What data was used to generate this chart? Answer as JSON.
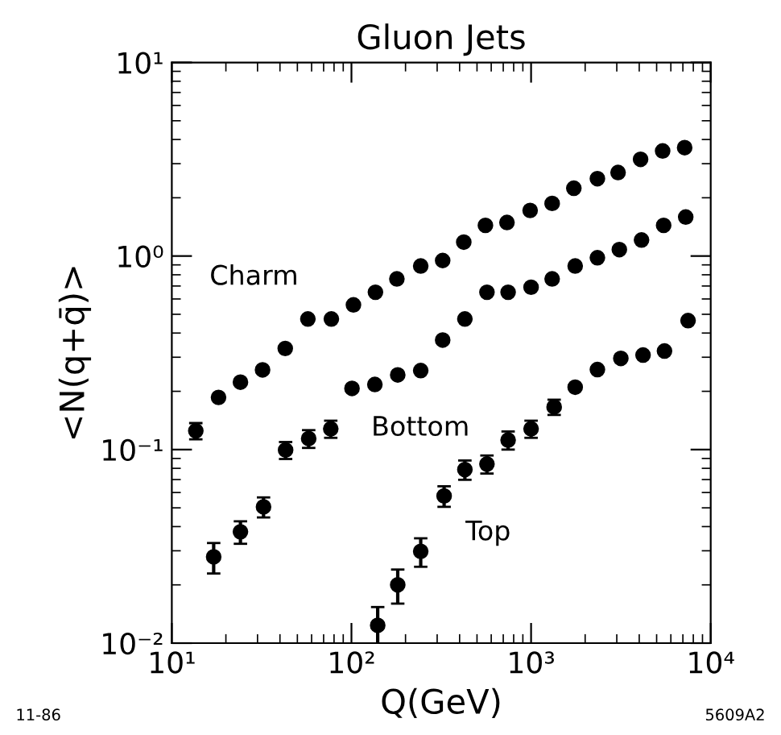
{
  "chart_data": {
    "type": "scatter",
    "title": "Gluon Jets",
    "xlabel": "Q(GeV)",
    "ylabel": "<N(q+q̄)>",
    "log": "xy",
    "marker": "circle",
    "grid": false,
    "legend": false,
    "xlim": [
      10,
      10000
    ],
    "ylim": [
      0.01,
      10
    ],
    "xticks": [
      {
        "value": 10,
        "label": "10¹"
      },
      {
        "value": 100,
        "label": "10²"
      },
      {
        "value": 1000,
        "label": "10³"
      },
      {
        "value": 10000,
        "label": "10⁴"
      }
    ],
    "yticks": [
      {
        "value": 0.01,
        "label": "10⁻²"
      },
      {
        "value": 0.1,
        "label": "10⁻¹"
      },
      {
        "value": 1,
        "label": "10⁰"
      },
      {
        "value": 10,
        "label": "10¹"
      }
    ],
    "series": [
      {
        "color": "#000000",
        "x": [
          13.6,
          18.2,
          24.1,
          32,
          42.8,
          57.2,
          77.3,
          102.6,
          136,
          179,
          243,
          322,
          422,
          557,
          734,
          988,
          1310,
          1730,
          2340,
          3050,
          4070,
          5400,
          7160
        ],
        "values": [
          0.125,
          0.186,
          0.223,
          0.258,
          0.333,
          0.473,
          0.473,
          0.559,
          0.65,
          0.762,
          0.888,
          0.948,
          1.18,
          1.44,
          1.49,
          1.72,
          1.87,
          2.24,
          2.51,
          2.7,
          3.16,
          3.49,
          3.63
        ],
        "errors": [
          0.012,
          null,
          null,
          null,
          null,
          null,
          null,
          null,
          null,
          null,
          null,
          null,
          null,
          null,
          null,
          null,
          null,
          null,
          null,
          null,
          null,
          null,
          null
        ]
      },
      {
        "color": "#000000",
        "x": [
          17.1,
          24.1,
          32.4,
          43,
          57.8,
          76.7,
          100.7,
          135,
          181,
          243,
          322,
          428,
          568,
          745,
          1000,
          1310,
          1760,
          2340,
          3100,
          4120,
          5470,
          7260
        ],
        "values": [
          0.0279,
          0.0376,
          0.0506,
          0.0994,
          0.114,
          0.128,
          0.207,
          0.217,
          0.243,
          0.256,
          0.368,
          0.473,
          0.65,
          0.65,
          0.69,
          0.762,
          0.888,
          0.98,
          1.08,
          1.21,
          1.44,
          1.59
        ],
        "errors": [
          0.005,
          0.005,
          0.006,
          0.01,
          0.012,
          0.013,
          null,
          null,
          null,
          null,
          null,
          null,
          null,
          null,
          null,
          null,
          null,
          null,
          null,
          null,
          null,
          null
        ]
      },
      {
        "color": "#000000",
        "x": [
          140,
          181,
          243,
          328,
          428,
          568,
          745,
          1000,
          1344,
          1760,
          2340,
          3160,
          4200,
          5530,
          7480
        ],
        "values": [
          0.01236,
          0.02,
          0.0298,
          0.0576,
          0.0788,
          0.0842,
          0.112,
          0.128,
          0.166,
          0.21,
          0.259,
          0.296,
          0.308,
          0.323,
          0.464
        ],
        "errors": [
          0.003,
          0.004,
          0.005,
          0.007,
          0.009,
          0.009,
          0.012,
          0.013,
          0.015,
          null,
          null,
          null,
          null,
          null,
          null
        ]
      }
    ],
    "annotations": [
      "Charm",
      "Bottom",
      "Top",
      "11-86",
      "5609A2"
    ]
  }
}
